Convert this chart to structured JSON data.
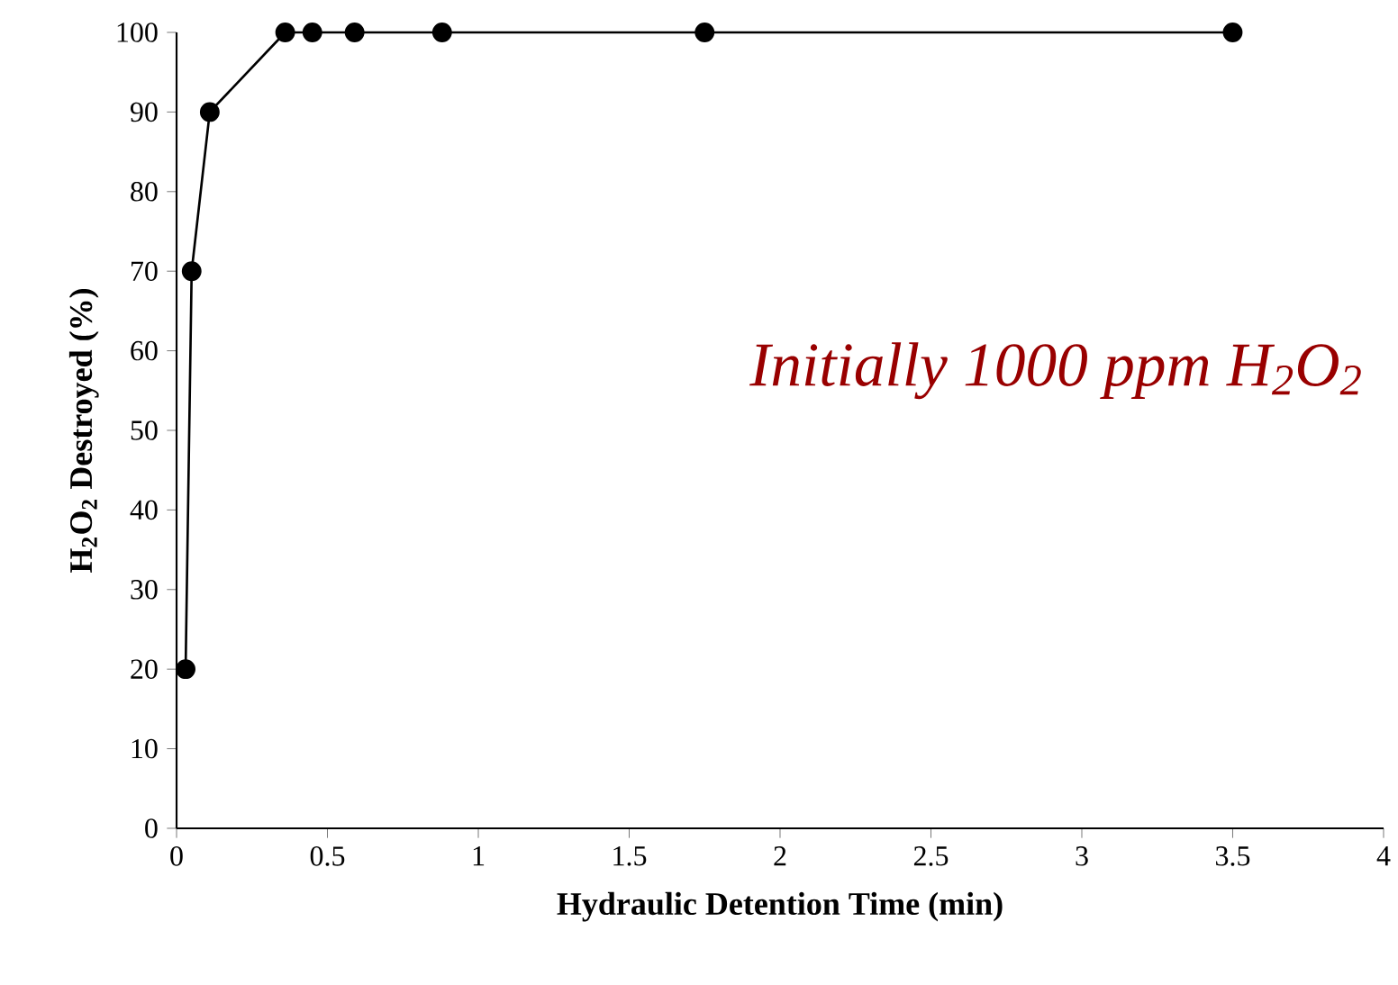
{
  "chart_data": {
    "type": "line",
    "xlabel": "Hydraulic Detention Time (min)",
    "ylabel": "H$_{2}$O$_{2}$ Destroyed (%)",
    "annotations": [
      "Initially 1000 ppm H$_{2}$O$_{2}$"
    ],
    "x": [
      0.03,
      0.05,
      0.11,
      0.36,
      0.45,
      0.59,
      0.88,
      1.75,
      3.5
    ],
    "series": [
      {
        "color": "#000000",
        "values": [
          20,
          70,
          90,
          100,
          100,
          100,
          100,
          100,
          100
        ]
      }
    ],
    "xlim": [
      0,
      4
    ],
    "ylim": [
      0,
      100
    ],
    "xticks": [
      0,
      0.5,
      1,
      1.5,
      2,
      2.5,
      3,
      3.5,
      4
    ],
    "yticks": [
      0,
      10,
      20,
      30,
      40,
      50,
      60,
      70,
      80,
      90,
      100
    ],
    "marker": "circle",
    "line_style": "solid",
    "grid": false
  }
}
